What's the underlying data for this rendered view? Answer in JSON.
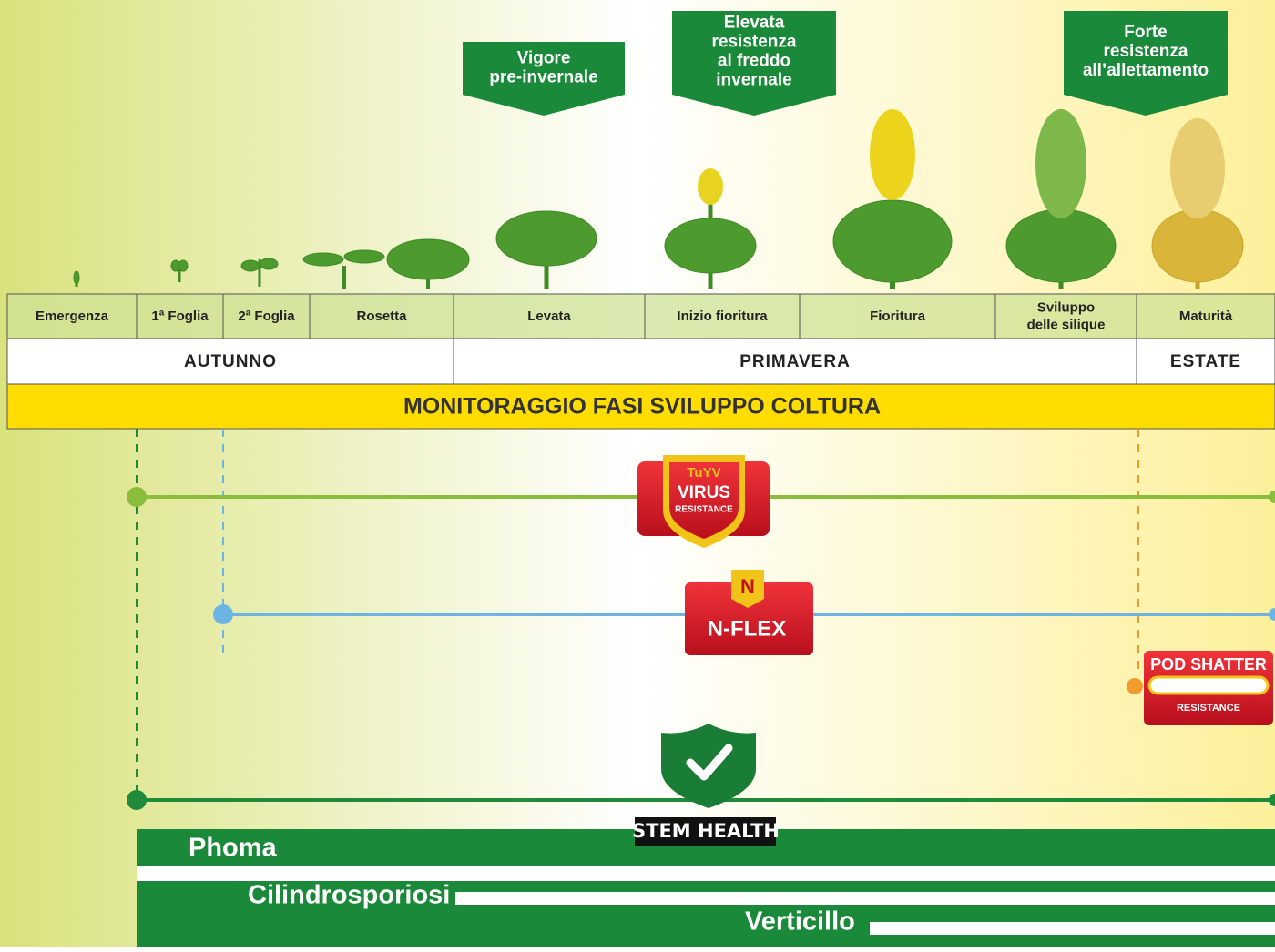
{
  "callouts": [
    {
      "lines": [
        "Vigore",
        "pre-invernale"
      ]
    },
    {
      "lines": [
        "Elevata",
        "resistenza",
        "al freddo",
        "invernale"
      ]
    },
    {
      "lines": [
        "Forte",
        "resistenza",
        "all’allettamento"
      ]
    }
  ],
  "stages": [
    {
      "lines": [
        "Emergenza"
      ]
    },
    {
      "lines": [
        "1ª Foglia"
      ]
    },
    {
      "lines": [
        "2ª Foglia"
      ]
    },
    {
      "lines": [
        "Rosetta"
      ]
    },
    {
      "lines": [
        "Levata"
      ]
    },
    {
      "lines": [
        "Inizio fioritura"
      ]
    },
    {
      "lines": [
        "Fioritura"
      ]
    },
    {
      "lines": [
        "Sviluppo",
        "delle silique"
      ]
    },
    {
      "lines": [
        "Maturità"
      ]
    }
  ],
  "seasons": [
    "AUTUNNO",
    "PRIMAVERA",
    "ESTATE"
  ],
  "banner": "MONITORAGGIO FASI  SVILUPPO COLTURA",
  "badges": {
    "virus": [
      "TuYV",
      "VIRUS",
      "RESISTANCE"
    ],
    "nflex": [
      "N",
      "N-FLEX"
    ],
    "pod": [
      "POD SHATTER",
      "RESISTANCE"
    ],
    "stem": "STEM HEALTH"
  },
  "diseases": [
    "Phoma",
    "Cilindrosporiosi",
    "Verticillo"
  ]
}
